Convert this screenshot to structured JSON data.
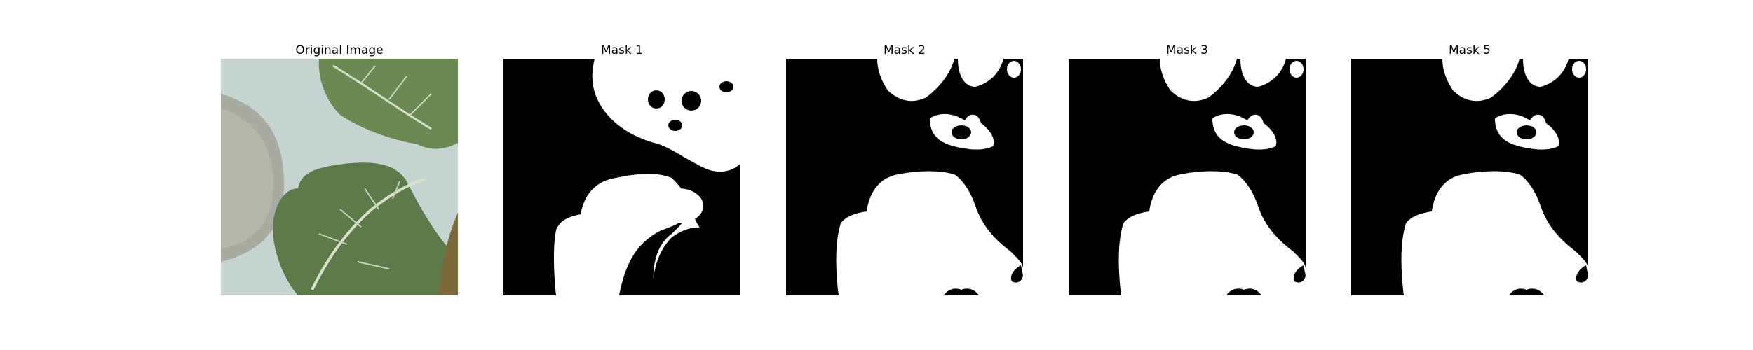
{
  "figure": {
    "panels": [
      {
        "title": "Original Image"
      },
      {
        "title": "Mask 1"
      },
      {
        "title": "Mask 2"
      },
      {
        "title": "Mask 3"
      },
      {
        "title": "Mask 5"
      }
    ]
  },
  "colors": {
    "background": "#ffffff",
    "mask_background": "#000000",
    "mask_foreground": "#ffffff",
    "surface": "#c9d6d3",
    "plate": "#a8aca3",
    "leaf_dark": "#5f7c4c",
    "leaf_light": "#7f9d62",
    "leaf_vein": "#d4dfc7"
  }
}
